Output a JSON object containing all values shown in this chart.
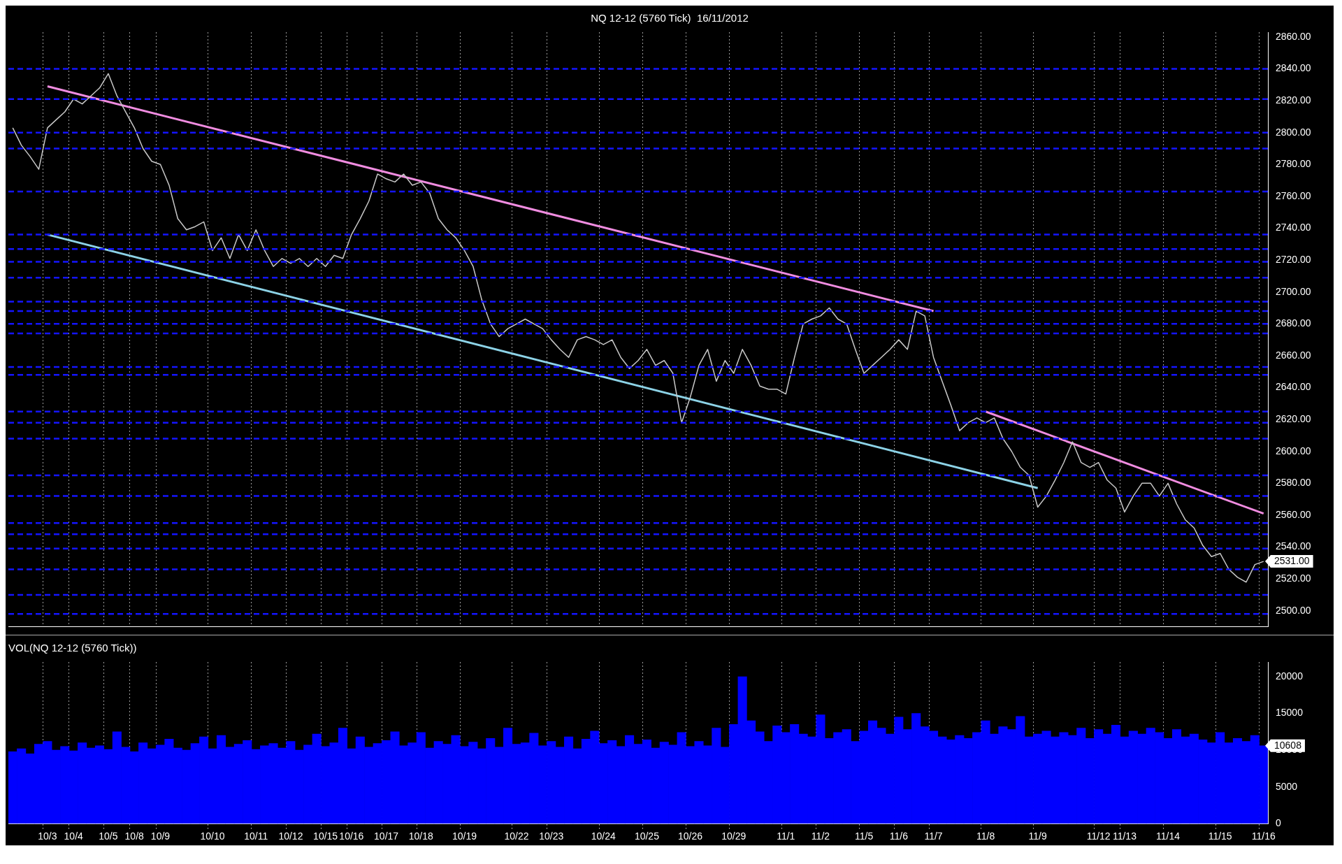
{
  "chart_data": [
    {
      "type": "line",
      "title": "NQ 12-12 (5760 Tick)  16/11/2012",
      "categories": [
        null,
        null,
        null,
        null,
        "10/3",
        null,
        null,
        "10/4",
        null,
        null,
        null,
        "10/5",
        null,
        null,
        "10/8",
        null,
        null,
        "10/9",
        null,
        null,
        null,
        null,
        null,
        "10/10",
        null,
        null,
        null,
        null,
        "10/11",
        null,
        null,
        null,
        "10/12",
        null,
        null,
        null,
        "10/15",
        null,
        null,
        "10/16",
        null,
        null,
        null,
        "10/17",
        null,
        null,
        null,
        "10/18",
        null,
        null,
        null,
        null,
        "10/19",
        null,
        null,
        null,
        null,
        null,
        "10/22",
        null,
        null,
        null,
        "10/23",
        null,
        null,
        null,
        null,
        null,
        "10/24",
        null,
        null,
        null,
        null,
        "10/25",
        null,
        null,
        null,
        null,
        "10/26",
        null,
        null,
        null,
        null,
        "10/29",
        null,
        null,
        null,
        null,
        null,
        "11/1",
        null,
        null,
        null,
        "11/2",
        null,
        null,
        null,
        null,
        "11/5",
        null,
        null,
        null,
        "11/6",
        null,
        null,
        null,
        "11/7",
        null,
        null,
        null,
        null,
        null,
        "11/8",
        null,
        null,
        null,
        null,
        null,
        "11/9",
        null,
        null,
        null,
        null,
        null,
        null,
        "11/12",
        null,
        null,
        "11/13",
        null,
        null,
        null,
        null,
        "11/14",
        null,
        null,
        null,
        null,
        null,
        "11/15",
        null,
        null,
        null,
        null,
        "11/16"
      ],
      "series": [
        {
          "type": "line",
          "color": "#c8c8c8",
          "values": [
            2803,
            2792,
            2785,
            2777,
            2803,
            2808,
            2813,
            2821,
            2818,
            2823,
            2828,
            2837,
            2823,
            2813,
            2803,
            2790,
            2782,
            2780,
            2767,
            2746,
            2739,
            2741,
            2744,
            2726,
            2734,
            2721,
            2736,
            2726,
            2739,
            2726,
            2716,
            2721,
            2718,
            2721,
            2716,
            2721,
            2716,
            2723,
            2721,
            2736,
            2746,
            2757,
            2774,
            2771,
            2769,
            2774,
            2767,
            2769,
            2762,
            2746,
            2739,
            2734,
            2726,
            2716,
            2695,
            2680,
            2672,
            2677,
            2680,
            2683,
            2680,
            2677,
            2670,
            2664,
            2659,
            2670,
            2672,
            2670,
            2667,
            2670,
            2659,
            2652,
            2657,
            2664,
            2654,
            2657,
            2649,
            2618,
            2634,
            2654,
            2664,
            2644,
            2657,
            2649,
            2664,
            2654,
            2641,
            2639,
            2639,
            2636,
            2659,
            2680,
            2683,
            2685,
            2690,
            2683,
            2680,
            2664,
            2649,
            2654,
            2659,
            2664,
            2670,
            2664,
            2688,
            2685,
            2659,
            2644,
            2629,
            2613,
            2618,
            2621,
            2618,
            2621,
            2608,
            2600,
            2590,
            2585,
            2565,
            2572,
            2582,
            2593,
            2606,
            2593,
            2590,
            2593,
            2582,
            2577,
            2562,
            2572,
            2580,
            2580,
            2572,
            2580,
            2567,
            2557,
            2552,
            2541,
            2534,
            2536,
            2526,
            2521,
            2518,
            2529,
            2531
          ]
        },
        {
          "type": "line",
          "color": "#f08ce0",
          "x": [
            "10/3",
            "11/7"
          ],
          "values": [
            2829,
            2688
          ]
        },
        {
          "type": "line",
          "color": "#f08ce0",
          "x": [
            "11/8",
            "11/16"
          ],
          "values": [
            2625,
            2561
          ]
        },
        {
          "type": "line",
          "color": "#8cd2e6",
          "x": [
            "10/3",
            "11/9"
          ],
          "values": [
            2736,
            2577
          ]
        }
      ],
      "ylim": [
        2490,
        2863
      ],
      "yticks": [
        {
          "value": 2500,
          "label": "2500.00"
        },
        {
          "value": 2520,
          "label": "2520.00"
        },
        {
          "value": 2540,
          "label": "2540.00"
        },
        {
          "value": 2560,
          "label": "2560.00"
        },
        {
          "value": 2580,
          "label": "2580.00"
        },
        {
          "value": 2600,
          "label": "2600.00"
        },
        {
          "value": 2620,
          "label": "2620.00"
        },
        {
          "value": 2640,
          "label": "2640.00"
        },
        {
          "value": 2660,
          "label": "2660.00"
        },
        {
          "value": 2680,
          "label": "2680.00"
        },
        {
          "value": 2700,
          "label": "2700.00"
        },
        {
          "value": 2720,
          "label": "2720.00"
        },
        {
          "value": 2740,
          "label": "2740.00"
        },
        {
          "value": 2760,
          "label": "2760.00"
        },
        {
          "value": 2780,
          "label": "2780.00"
        },
        {
          "value": 2800,
          "label": "2800.00"
        },
        {
          "value": 2820,
          "label": "2820.00"
        },
        {
          "value": 2840,
          "label": "2840.00"
        },
        {
          "value": 2860,
          "label": "2860.00"
        }
      ],
      "grid": "x",
      "tick_labels": "y",
      "marker": "none",
      "ref_lines": [
        {
          "axis": "y",
          "value": 2840,
          "color": "#1414ff",
          "line_style": "dashed"
        },
        {
          "axis": "y",
          "value": 2821,
          "color": "#1414ff",
          "line_style": "dashed"
        },
        {
          "axis": "y",
          "value": 2800,
          "color": "#1414ff",
          "line_style": "dashed"
        },
        {
          "axis": "y",
          "value": 2790,
          "color": "#1414ff",
          "line_style": "dashed"
        },
        {
          "axis": "y",
          "value": 2763,
          "color": "#1414ff",
          "line_style": "dashed"
        },
        {
          "axis": "y",
          "value": 2736,
          "color": "#1414ff",
          "line_style": "dashed"
        },
        {
          "axis": "y",
          "value": 2727,
          "color": "#1414ff",
          "line_style": "dashed"
        },
        {
          "axis": "y",
          "value": 2719,
          "color": "#1414ff",
          "line_style": "dashed"
        },
        {
          "axis": "y",
          "value": 2709,
          "color": "#1414ff",
          "line_style": "dashed"
        },
        {
          "axis": "y",
          "value": 2694,
          "color": "#1414ff",
          "line_style": "dashed"
        },
        {
          "axis": "y",
          "value": 2688,
          "color": "#1414ff",
          "line_style": "dashed"
        },
        {
          "axis": "y",
          "value": 2680,
          "color": "#1414ff",
          "line_style": "dashed"
        },
        {
          "axis": "y",
          "value": 2674,
          "color": "#1414ff",
          "line_style": "dashed"
        },
        {
          "axis": "y",
          "value": 2653,
          "color": "#1414ff",
          "line_style": "dashed"
        },
        {
          "axis": "y",
          "value": 2648,
          "color": "#1414ff",
          "line_style": "dashed"
        },
        {
          "axis": "y",
          "value": 2625,
          "color": "#1414ff",
          "line_style": "dashed"
        },
        {
          "axis": "y",
          "value": 2618,
          "color": "#1414ff",
          "line_style": "dashed"
        },
        {
          "axis": "y",
          "value": 2608,
          "color": "#1414ff",
          "line_style": "dashed"
        },
        {
          "axis": "y",
          "value": 2585,
          "color": "#1414ff",
          "line_style": "dashed"
        },
        {
          "axis": "y",
          "value": 2572,
          "color": "#1414ff",
          "line_style": "dashed"
        },
        {
          "axis": "y",
          "value": 2555,
          "color": "#1414ff",
          "line_style": "dashed"
        },
        {
          "axis": "y",
          "value": 2548,
          "color": "#1414ff",
          "line_style": "dashed"
        },
        {
          "axis": "y",
          "value": 2539,
          "color": "#1414ff",
          "line_style": "dashed"
        },
        {
          "axis": "y",
          "value": 2526,
          "color": "#1414ff",
          "line_style": "dashed"
        },
        {
          "axis": "y",
          "value": 2510,
          "color": "#1414ff",
          "line_style": "dashed"
        },
        {
          "axis": "y",
          "value": 2498,
          "color": "#1414ff",
          "line_style": "dashed"
        }
      ],
      "annotations": [
        "2531.00"
      ]
    },
    {
      "type": "bar",
      "title": "VOL(NQ 12-12 (5760 Tick))",
      "categories": [
        null,
        null,
        null,
        null,
        "10/3",
        null,
        null,
        "10/4",
        null,
        null,
        null,
        "10/5",
        null,
        null,
        "10/8",
        null,
        null,
        "10/9",
        null,
        null,
        null,
        null,
        null,
        "10/10",
        null,
        null,
        null,
        null,
        "10/11",
        null,
        null,
        null,
        "10/12",
        null,
        null,
        null,
        "10/15",
        null,
        null,
        "10/16",
        null,
        null,
        null,
        "10/17",
        null,
        null,
        null,
        "10/18",
        null,
        null,
        null,
        null,
        "10/19",
        null,
        null,
        null,
        null,
        null,
        "10/22",
        null,
        null,
        null,
        "10/23",
        null,
        null,
        null,
        null,
        null,
        "10/24",
        null,
        null,
        null,
        null,
        "10/25",
        null,
        null,
        null,
        null,
        "10/26",
        null,
        null,
        null,
        null,
        "10/29",
        null,
        null,
        null,
        null,
        null,
        "11/1",
        null,
        null,
        null,
        "11/2",
        null,
        null,
        null,
        null,
        "11/5",
        null,
        null,
        null,
        "11/6",
        null,
        null,
        null,
        "11/7",
        null,
        null,
        null,
        null,
        null,
        "11/8",
        null,
        null,
        null,
        null,
        null,
        "11/9",
        null,
        null,
        null,
        null,
        null,
        null,
        "11/12",
        null,
        null,
        "11/13",
        null,
        null,
        null,
        null,
        "11/14",
        null,
        null,
        null,
        null,
        null,
        "11/15",
        null,
        null,
        null,
        null,
        "11/16"
      ],
      "series": [
        {
          "type": "bar",
          "color": "#0000ff",
          "values": [
            9800,
            10200,
            9500,
            10800,
            11200,
            10000,
            10500,
            9900,
            11000,
            10300,
            10600,
            10100,
            12500,
            10400,
            9800,
            11000,
            10200,
            10700,
            11500,
            10300,
            10000,
            10900,
            11800,
            10200,
            12000,
            10400,
            10800,
            11300,
            10100,
            10600,
            10900,
            10300,
            11200,
            10000,
            10700,
            12200,
            10500,
            11000,
            13000,
            10200,
            11800,
            10400,
            10900,
            11300,
            12500,
            10600,
            11000,
            12400,
            10300,
            11200,
            10800,
            12000,
            10500,
            11100,
            10200,
            11600,
            10400,
            13000,
            10800,
            11000,
            12300,
            10600,
            11200,
            10400,
            11800,
            10200,
            11500,
            12600,
            10900,
            11300,
            10500,
            12000,
            10800,
            11400,
            10300,
            11100,
            10700,
            12400,
            10500,
            11200,
            10600,
            13000,
            10400,
            13500,
            20000,
            14000,
            12500,
            11200,
            13300,
            12400,
            13500,
            12200,
            11800,
            14800,
            11600,
            12400,
            12800,
            11200,
            12600,
            14000,
            13000,
            12200,
            14500,
            12800,
            15000,
            13200,
            12600,
            11800,
            11400,
            12000,
            11600,
            12400,
            14000,
            12200,
            13200,
            12800,
            14600,
            11800,
            12200,
            12600,
            11800,
            12400,
            12000,
            13000,
            11600,
            12800,
            12200,
            13400,
            11800,
            12600,
            12200,
            13000,
            12400,
            11600,
            12800,
            11800,
            12200,
            11400,
            11000,
            12400,
            11000,
            11600,
            11200,
            12000,
            10608
          ]
        }
      ],
      "ylim": [
        0,
        22000
      ],
      "yticks": [
        0,
        5000,
        10000,
        15000,
        20000
      ],
      "grid": "x",
      "annotations": [
        "10608"
      ]
    }
  ]
}
